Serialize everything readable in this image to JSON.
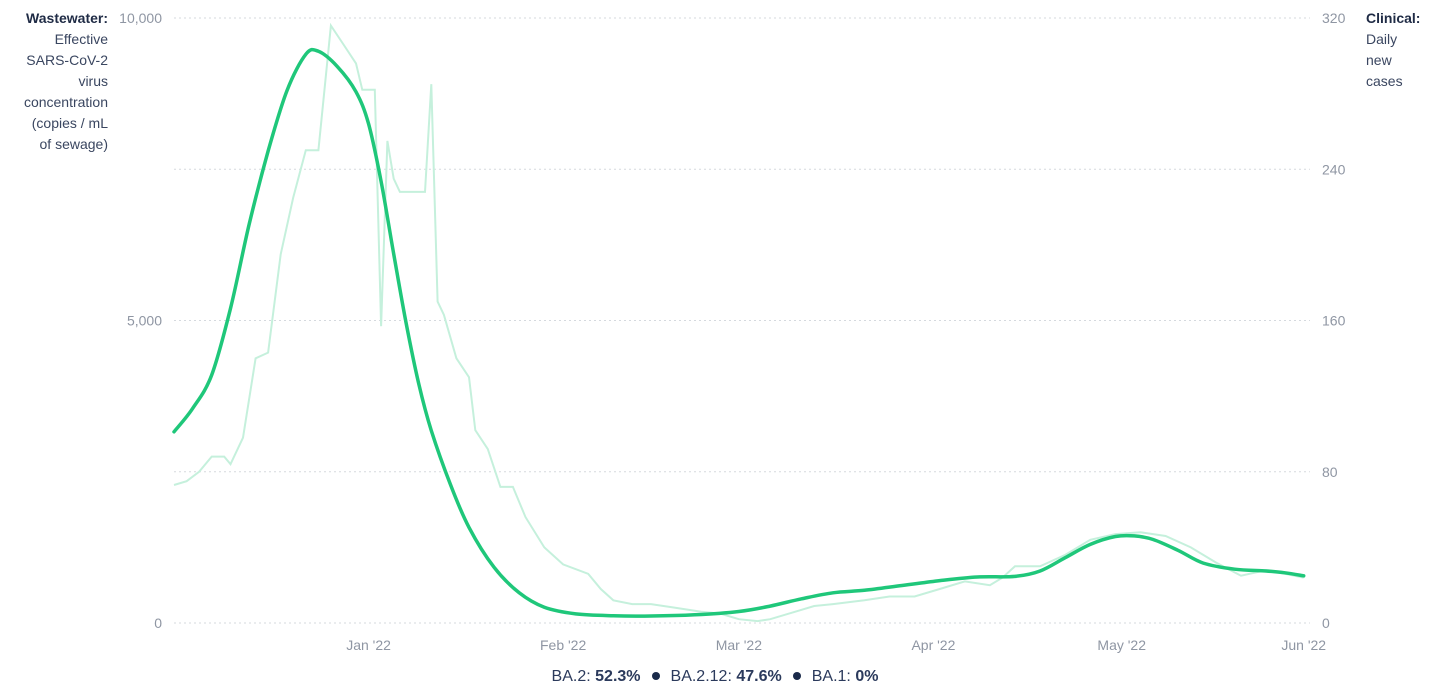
{
  "left_axis": {
    "title": "Wastewater:",
    "description": [
      "Effective",
      "SARS-CoV-2",
      "virus",
      "concentration",
      "(copies / mL",
      "of sewage)"
    ]
  },
  "right_axis": {
    "title": "Clinical:",
    "description": [
      "Daily",
      "new",
      "cases"
    ]
  },
  "legend": [
    {
      "label": "BA.2:",
      "value": "52.3%"
    },
    {
      "label": "BA.2.12:",
      "value": "47.6%"
    },
    {
      "label": "BA.1:",
      "value": "0%"
    }
  ],
  "colors": {
    "wastewater": "#1fc77a",
    "clinical": "#c5f0dc",
    "grid": "#d5d9de",
    "dot": "#1a2a4a"
  },
  "chart_data": {
    "type": "line",
    "x_ticks": [
      "Jan '22",
      "Feb '22",
      "Mar '22",
      "Apr '22",
      "May '22",
      "Jun '22"
    ],
    "y_left": {
      "ticks": [
        "0",
        "5,000",
        "10,000"
      ],
      "tick_values": [
        0,
        5000,
        10000
      ],
      "range": [
        0,
        10000
      ]
    },
    "y_right": {
      "ticks": [
        "0",
        "80",
        "160",
        "240",
        "320"
      ],
      "tick_values": [
        0,
        80,
        160,
        240,
        320
      ],
      "range": [
        0,
        320
      ]
    },
    "x_range": [
      "2021-12-15",
      "2022-06-14"
    ],
    "grid": "horizontal dotted",
    "series": [
      {
        "axis": "left",
        "points": [
          [
            "2021-12-15",
            3160
          ],
          [
            "2021-12-18",
            3550
          ],
          [
            "2021-12-21",
            4100
          ],
          [
            "2021-12-24",
            5200
          ],
          [
            "2021-12-27",
            6600
          ],
          [
            "2021-12-30",
            7800
          ],
          [
            "2022-01-02",
            8800
          ],
          [
            "2022-01-05",
            9400
          ],
          [
            "2022-01-07",
            9450
          ],
          [
            "2022-01-10",
            9200
          ],
          [
            "2022-01-13",
            8780
          ],
          [
            "2022-01-15",
            8250
          ],
          [
            "2022-01-17",
            7300
          ],
          [
            "2022-01-19",
            6100
          ],
          [
            "2022-01-21",
            4950
          ],
          [
            "2022-01-23",
            3950
          ],
          [
            "2022-01-25",
            3180
          ],
          [
            "2022-01-28",
            2300
          ],
          [
            "2022-01-31",
            1580
          ],
          [
            "2022-02-04",
            920
          ],
          [
            "2022-02-08",
            500
          ],
          [
            "2022-02-12",
            260
          ],
          [
            "2022-02-17",
            150
          ],
          [
            "2022-02-23",
            120
          ],
          [
            "2022-03-01",
            115
          ],
          [
            "2022-03-08",
            135
          ],
          [
            "2022-03-15",
            190
          ],
          [
            "2022-03-20",
            280
          ],
          [
            "2022-03-25",
            400
          ],
          [
            "2022-03-30",
            500
          ],
          [
            "2022-04-04",
            540
          ],
          [
            "2022-04-10",
            620
          ],
          [
            "2022-04-16",
            700
          ],
          [
            "2022-04-22",
            760
          ],
          [
            "2022-04-28",
            770
          ],
          [
            "2022-05-02",
            860
          ],
          [
            "2022-05-06",
            1080
          ],
          [
            "2022-05-10",
            1300
          ],
          [
            "2022-05-14",
            1430
          ],
          [
            "2022-05-17",
            1440
          ],
          [
            "2022-05-20",
            1380
          ],
          [
            "2022-05-24",
            1200
          ],
          [
            "2022-05-28",
            990
          ],
          [
            "2022-06-02",
            890
          ],
          [
            "2022-06-07",
            860
          ],
          [
            "2022-06-10",
            830
          ],
          [
            "2022-06-13",
            780
          ]
        ]
      },
      {
        "axis": "right",
        "points": [
          [
            "2021-12-15",
            73
          ],
          [
            "2021-12-17",
            75
          ],
          [
            "2021-12-19",
            80
          ],
          [
            "2021-12-21",
            88
          ],
          [
            "2021-12-23",
            88
          ],
          [
            "2021-12-24",
            84
          ],
          [
            "2021-12-26",
            98
          ],
          [
            "2021-12-28",
            140
          ],
          [
            "2021-12-30",
            143
          ],
          [
            "2022-01-01",
            195
          ],
          [
            "2022-01-03",
            225
          ],
          [
            "2022-01-05",
            250
          ],
          [
            "2022-01-07",
            250
          ],
          [
            "2022-01-09",
            316
          ],
          [
            "2022-01-11",
            306
          ],
          [
            "2022-01-13",
            296
          ],
          [
            "2022-01-14",
            282
          ],
          [
            "2022-01-16",
            282
          ],
          [
            "2022-01-17",
            157
          ],
          [
            "2022-01-18",
            255
          ],
          [
            "2022-01-19",
            235
          ],
          [
            "2022-01-20",
            228
          ],
          [
            "2022-01-22",
            228
          ],
          [
            "2022-01-24",
            228
          ],
          [
            "2022-01-25",
            285
          ],
          [
            "2022-01-26",
            170
          ],
          [
            "2022-01-27",
            163
          ],
          [
            "2022-01-29",
            140
          ],
          [
            "2022-01-31",
            130
          ],
          [
            "2022-02-01",
            102
          ],
          [
            "2022-02-03",
            92
          ],
          [
            "2022-02-05",
            72
          ],
          [
            "2022-02-07",
            72
          ],
          [
            "2022-02-09",
            56
          ],
          [
            "2022-02-12",
            40
          ],
          [
            "2022-02-15",
            31
          ],
          [
            "2022-02-19",
            26
          ],
          [
            "2022-02-21",
            18
          ],
          [
            "2022-02-23",
            12
          ],
          [
            "2022-02-26",
            10
          ],
          [
            "2022-03-01",
            10
          ],
          [
            "2022-03-05",
            8
          ],
          [
            "2022-03-09",
            6
          ],
          [
            "2022-03-12",
            5
          ],
          [
            "2022-03-15",
            2
          ],
          [
            "2022-03-18",
            1
          ],
          [
            "2022-03-20",
            2
          ],
          [
            "2022-03-24",
            6
          ],
          [
            "2022-03-27",
            9
          ],
          [
            "2022-03-30",
            10
          ],
          [
            "2022-04-04",
            12
          ],
          [
            "2022-04-08",
            14
          ],
          [
            "2022-04-12",
            14
          ],
          [
            "2022-04-16",
            18
          ],
          [
            "2022-04-20",
            22
          ],
          [
            "2022-04-24",
            20
          ],
          [
            "2022-04-26",
            24
          ],
          [
            "2022-04-28",
            30
          ],
          [
            "2022-05-02",
            30
          ],
          [
            "2022-05-06",
            36
          ],
          [
            "2022-05-10",
            44
          ],
          [
            "2022-05-14",
            47
          ],
          [
            "2022-05-18",
            48
          ],
          [
            "2022-05-22",
            46
          ],
          [
            "2022-05-26",
            40
          ],
          [
            "2022-05-30",
            32
          ],
          [
            "2022-06-03",
            25
          ],
          [
            "2022-06-07",
            28
          ],
          [
            "2022-06-10",
            26
          ],
          [
            "2022-06-13",
            24
          ]
        ]
      }
    ]
  }
}
